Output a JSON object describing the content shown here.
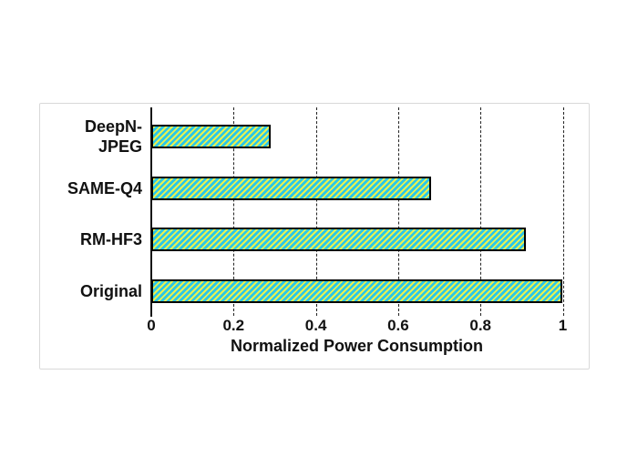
{
  "figure": {
    "background_color": "#ffffff",
    "panel_border_color": "#d9d9d9"
  },
  "chart_data": {
    "type": "bar",
    "orientation": "horizontal",
    "title": "",
    "categories": [
      "DeepN-JPEG",
      "SAME-Q4",
      "RM-HF3",
      "Original"
    ],
    "display_labels": [
      "DeepN-\nJPEG",
      "SAME-Q4",
      "RM-HF3",
      "Original"
    ],
    "values": [
      0.29,
      0.68,
      0.91,
      1.0
    ],
    "xlabel": "Normalized Power Consumption",
    "ylabel": "",
    "xticks": [
      0,
      0.2,
      0.4,
      0.6,
      0.8,
      1
    ],
    "tick_labels": [
      "0",
      "0.2",
      "0.4",
      "0.6",
      "0.8",
      "1"
    ],
    "xlim": [
      0,
      1.03
    ],
    "grid": "vertical-dashed",
    "legend_position": "none",
    "bar_fill_color": "#2bc7e8",
    "bar_hatch_color": "#e9f24e",
    "bar_hatch_direction": "/",
    "bar_edge_color": "#000000",
    "text_color": "#111111"
  }
}
